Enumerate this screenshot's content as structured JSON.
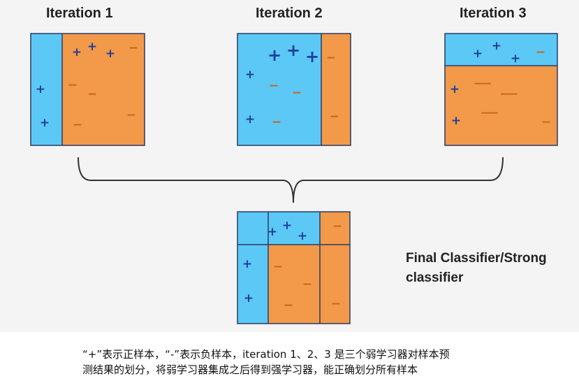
{
  "titles": {
    "iteration1": "Iteration 1",
    "iteration2": "Iteration 2",
    "iteration3": "Iteration 3"
  },
  "final_label": {
    "line1": "Final Classifier/Strong",
    "line2": "classifier"
  },
  "caption": {
    "line1": "“+”表示正样本，“-”表示负样本，iteration 1、2、3 是三个弱学习器对样本预",
    "line2": "测结果的划分，将弱学习器集成之后得到强学习器，能正确划分所有样本"
  },
  "symbols": {
    "positive": "+",
    "negative": "−"
  },
  "colors": {
    "positive_region": "#5bc8f5",
    "negative_region": "#f2994a",
    "plus_mark": "#1f3f99",
    "minus_mark": "#c8641e",
    "border": "#2a3a66",
    "background": "#f4f4f4"
  }
}
